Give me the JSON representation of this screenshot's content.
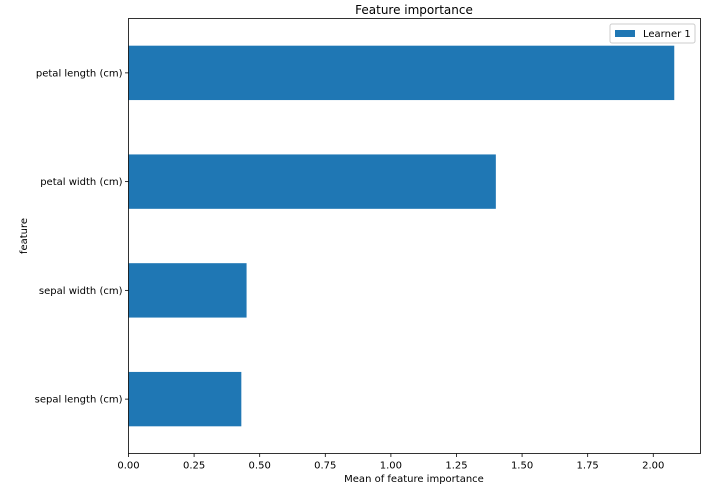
{
  "chart_data": {
    "type": "bar",
    "orientation": "horizontal",
    "title": "Feature importance",
    "xlabel": "Mean of feature importance",
    "ylabel": "feature",
    "categories": [
      "petal length (cm)",
      "petal width (cm)",
      "sepal width (cm)",
      "sepal length (cm)"
    ],
    "series": [
      {
        "name": "Learner 1",
        "values": [
          2.08,
          1.4,
          0.45,
          0.43
        ]
      }
    ],
    "xlim": [
      0,
      2.18
    ],
    "xticks": [
      0.0,
      0.25,
      0.5,
      0.75,
      1.0,
      1.25,
      1.5,
      1.75,
      2.0
    ],
    "xtick_labels": [
      "0.00",
      "0.25",
      "0.50",
      "0.75",
      "1.00",
      "1.25",
      "1.50",
      "1.75",
      "2.00"
    ],
    "grid": false,
    "legend_position": "top-right",
    "colors": {
      "bar": "#1f77b4",
      "axis": "#000000",
      "legend_border": "#cccccc"
    }
  }
}
